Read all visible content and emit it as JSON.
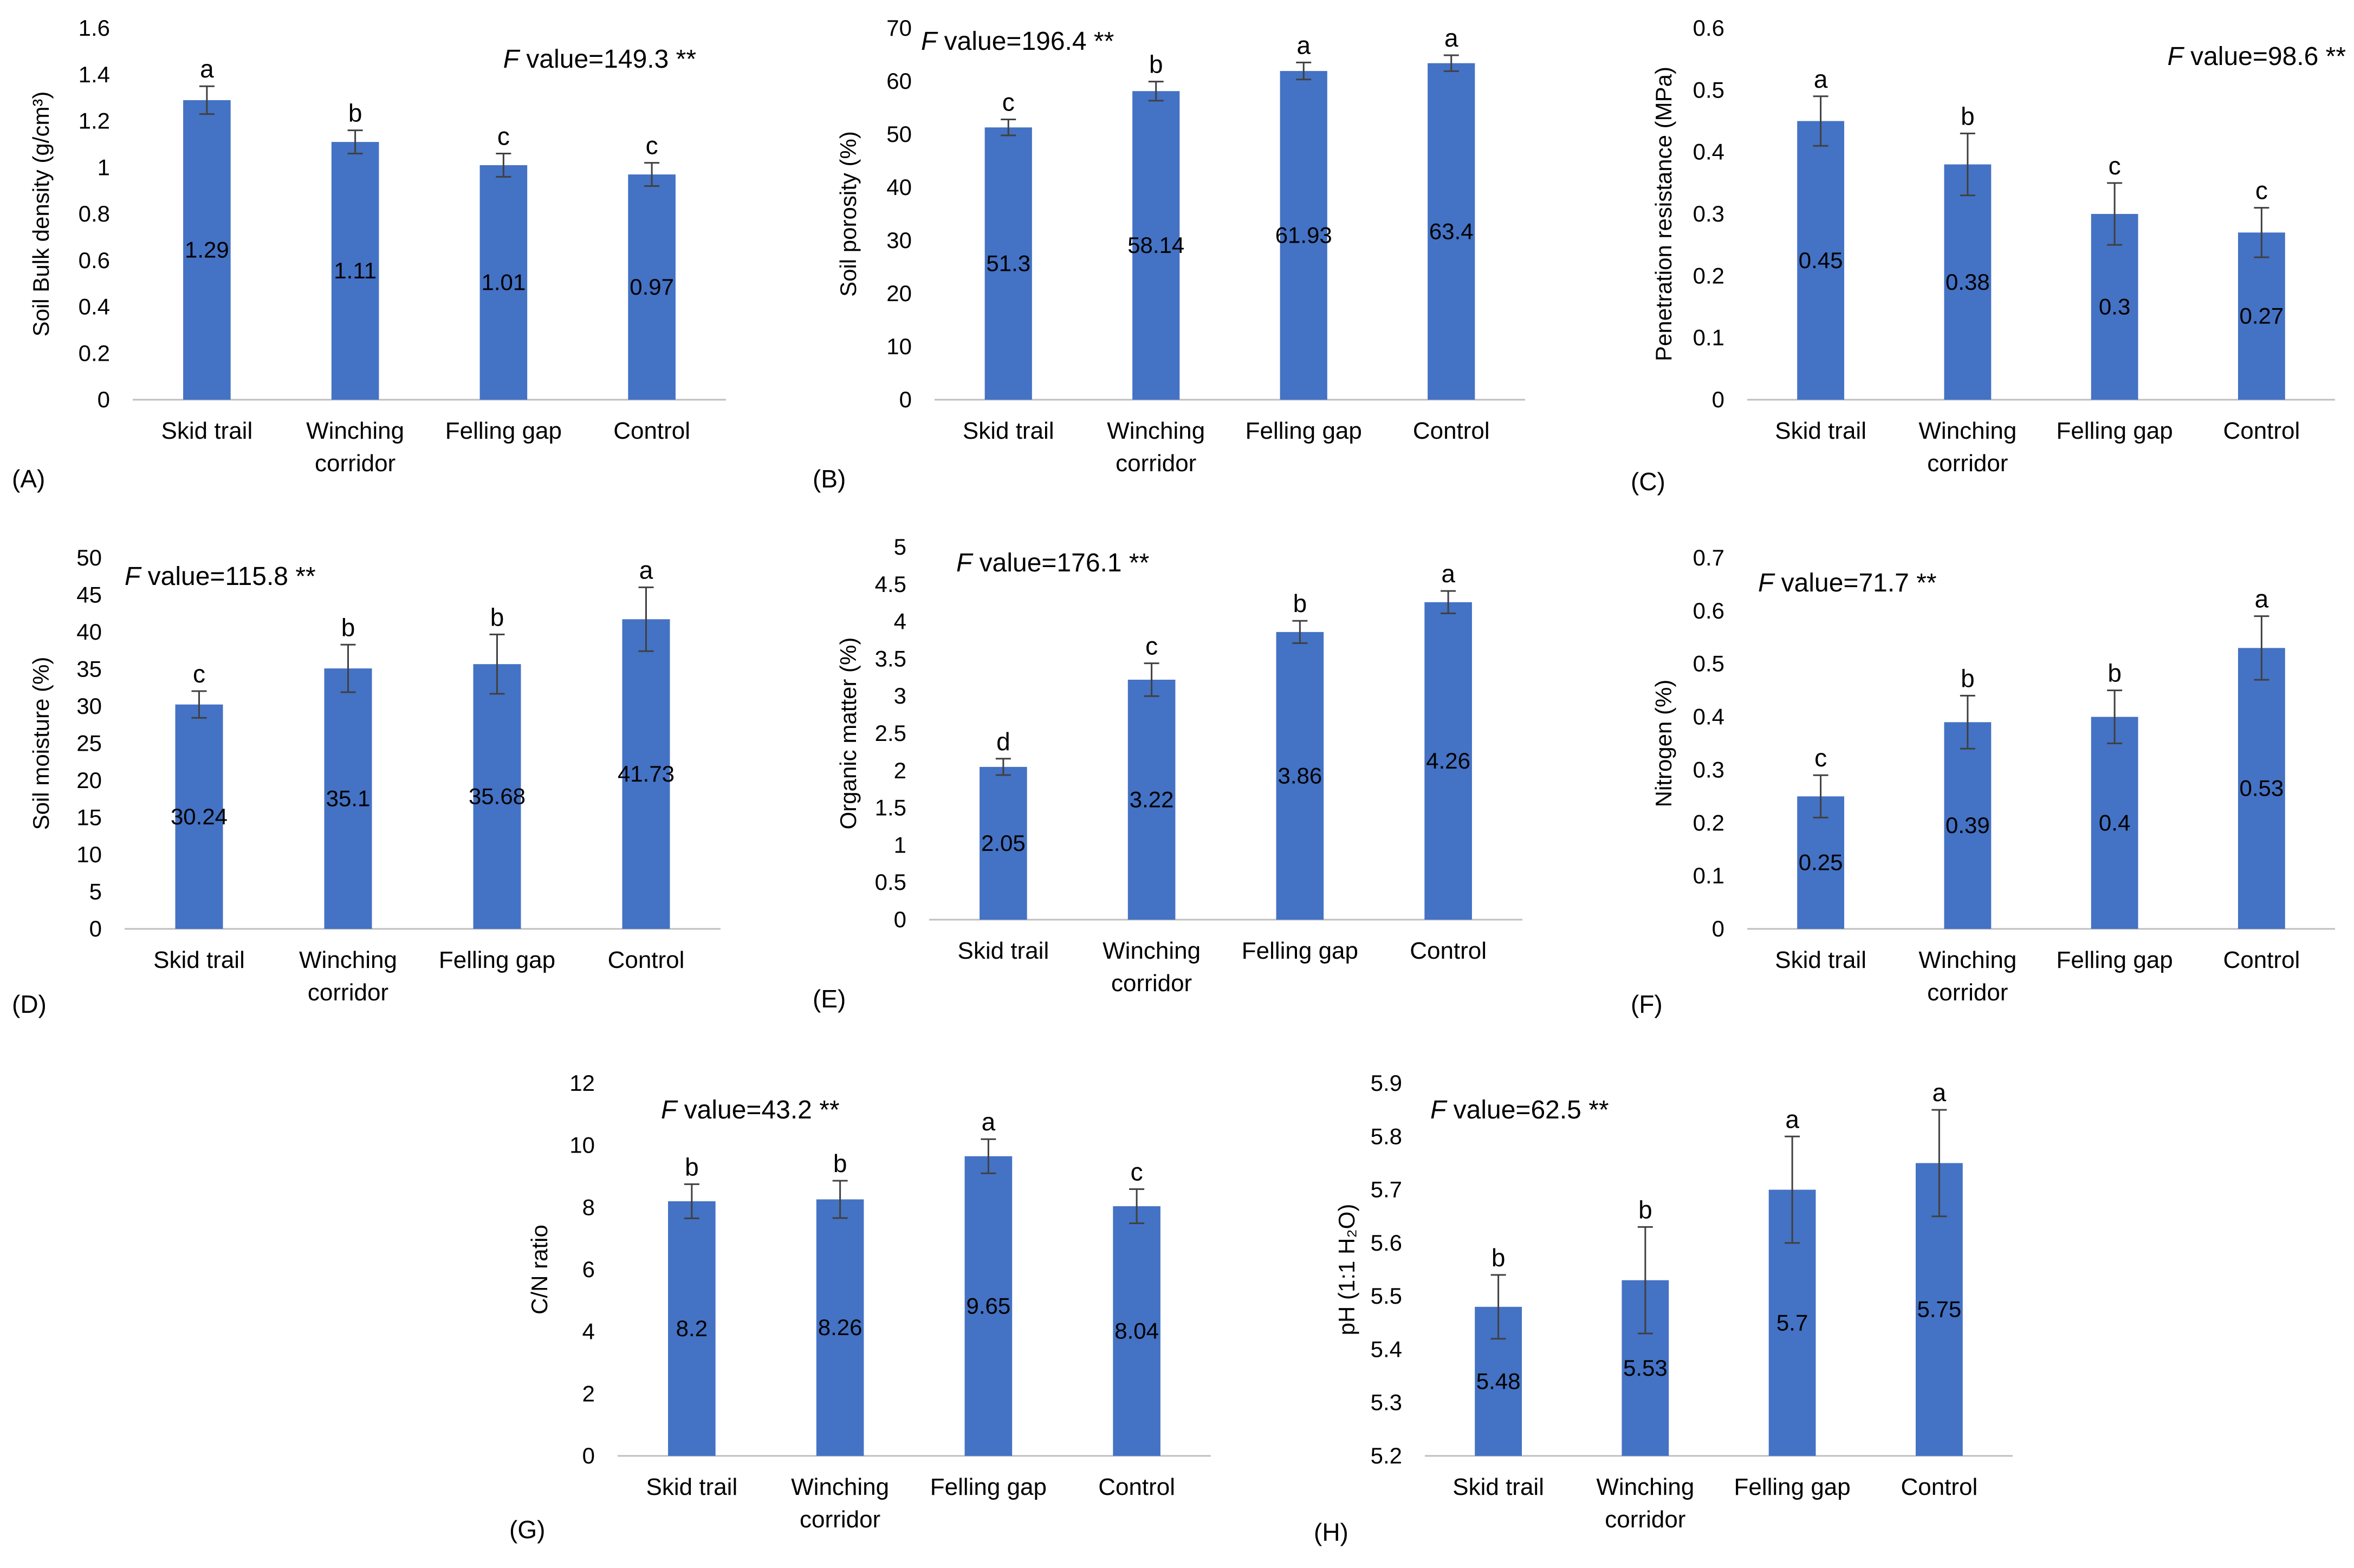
{
  "figure_colors": {
    "bar": "#4472C4",
    "text": "#000000",
    "axis": "#bfbfbf",
    "error": "#404040"
  },
  "chart_data": [
    {
      "panel": "(A)",
      "type": "bar",
      "title": "",
      "categories": [
        [
          "Skid trail"
        ],
        [
          "Winching",
          "corridor"
        ],
        [
          "Felling gap"
        ],
        [
          "Control"
        ]
      ],
      "values": [
        1.29,
        1.11,
        1.01,
        0.97
      ],
      "value_labels": [
        "1.29",
        "1.11",
        "1.01",
        "0.97"
      ],
      "errors": [
        0.06,
        0.05,
        0.05,
        0.05
      ],
      "letters": [
        "a",
        "b",
        "c",
        "c"
      ],
      "ylabel": "Soil Bulk density (g/cm³)",
      "ylim": [
        0,
        1.6
      ],
      "yticks": [
        "0",
        "0.2",
        "0.4",
        "0.6",
        "0.8",
        "1",
        "1.2",
        "1.4",
        "1.6"
      ],
      "f_label": "F",
      "f_text": " value=149.3 **",
      "f_position": "top-right",
      "grid": false,
      "legend": "none"
    },
    {
      "panel": "(B)",
      "type": "bar",
      "title": "",
      "categories": [
        [
          "Skid trail"
        ],
        [
          "Winching",
          "corridor"
        ],
        [
          "Felling gap"
        ],
        [
          "Control"
        ]
      ],
      "values": [
        51.3,
        58.14,
        61.93,
        63.4
      ],
      "value_labels": [
        "51.3",
        "58.14",
        "61.93",
        "63.4"
      ],
      "errors": [
        1.5,
        1.8,
        1.6,
        1.5
      ],
      "letters": [
        "c",
        "b",
        "a",
        "a"
      ],
      "ylabel": "Soil porosity (%)",
      "ylim": [
        0,
        70
      ],
      "yticks": [
        "0",
        "10",
        "20",
        "30",
        "40",
        "50",
        "60",
        "70"
      ],
      "f_label": "F",
      "f_text": " value=196.4 **",
      "f_position": "top-left",
      "grid": false,
      "legend": "none"
    },
    {
      "panel": "(C)",
      "type": "bar",
      "title": "",
      "categories": [
        [
          "Skid trail"
        ],
        [
          "Winching",
          "corridor"
        ],
        [
          "Felling gap"
        ],
        [
          "Control"
        ]
      ],
      "values": [
        0.45,
        0.38,
        0.3,
        0.27
      ],
      "value_labels": [
        "0.45",
        "0.38",
        "0.3",
        "0.27"
      ],
      "errors": [
        0.04,
        0.05,
        0.05,
        0.04
      ],
      "letters": [
        "a",
        "b",
        "c",
        "c"
      ],
      "ylabel": "Penetration resistance (MPa)",
      "ylim": [
        0,
        0.6
      ],
      "yticks": [
        "0",
        "0.1",
        "0.2",
        "0.3",
        "0.4",
        "0.5",
        "0.6"
      ],
      "f_label": "F",
      "f_text": " value=98.6 **",
      "f_position": "top-right",
      "grid": false,
      "legend": "none"
    },
    {
      "panel": "(D)",
      "type": "bar",
      "title": "",
      "categories": [
        [
          "Skid trail"
        ],
        [
          "Winching",
          "corridor"
        ],
        [
          "Felling gap"
        ],
        [
          "Control"
        ]
      ],
      "values": [
        30.24,
        35.1,
        35.68,
        41.73
      ],
      "value_labels": [
        "30.24",
        "35.1",
        "35.68",
        "41.73"
      ],
      "errors": [
        1.8,
        3.2,
        4.0,
        4.3
      ],
      "letters": [
        "c",
        "b",
        "b",
        "a"
      ],
      "ylabel": "Soil moisture (%)",
      "ylim": [
        0,
        50
      ],
      "yticks": [
        "0",
        "5",
        "10",
        "15",
        "20",
        "25",
        "30",
        "35",
        "40",
        "45",
        "50"
      ],
      "f_label": "F",
      "f_text": " value=115.8 **",
      "f_position": "top-left",
      "grid": false,
      "legend": "none"
    },
    {
      "panel": "(E)",
      "type": "bar",
      "title": "",
      "categories": [
        [
          "Skid trail"
        ],
        [
          "Winching",
          "corridor"
        ],
        [
          "Felling gap"
        ],
        [
          "Control"
        ]
      ],
      "values": [
        2.05,
        3.22,
        3.86,
        4.26
      ],
      "value_labels": [
        "2.05",
        "3.22",
        "3.86",
        "4.26"
      ],
      "errors": [
        0.11,
        0.22,
        0.15,
        0.15
      ],
      "letters": [
        "d",
        "c",
        "b",
        "a"
      ],
      "ylabel": "Organic matter (%)",
      "ylim": [
        0,
        5
      ],
      "yticks": [
        "0",
        "0.5",
        "1",
        "1.5",
        "2",
        "2.5",
        "3",
        "3.5",
        "4",
        "4.5",
        "5"
      ],
      "f_label": "F",
      "f_text": " value=176.1 **",
      "f_position": "top-left",
      "grid": false,
      "legend": "none"
    },
    {
      "panel": "(F)",
      "type": "bar",
      "title": "",
      "categories": [
        [
          "Skid trail"
        ],
        [
          "Winching",
          "corridor"
        ],
        [
          "Felling gap"
        ],
        [
          "Control"
        ]
      ],
      "values": [
        0.25,
        0.39,
        0.4,
        0.53
      ],
      "value_labels": [
        "0.25",
        "0.39",
        "0.4",
        "0.53"
      ],
      "errors": [
        0.04,
        0.05,
        0.05,
        0.06
      ],
      "letters": [
        "c",
        "b",
        "b",
        "a"
      ],
      "ylabel": "Nitrogen (%)",
      "ylim": [
        0,
        0.7
      ],
      "yticks": [
        "0",
        "0.1",
        "0.2",
        "0.3",
        "0.4",
        "0.5",
        "0.6",
        "0.7"
      ],
      "f_label": "F",
      "f_text": " value=71.7 **",
      "f_position": "top-left",
      "grid": false,
      "legend": "none"
    },
    {
      "panel": "(G)",
      "type": "bar",
      "title": "",
      "categories": [
        [
          "Skid trail"
        ],
        [
          "Winching",
          "corridor"
        ],
        [
          "Felling gap"
        ],
        [
          "Control"
        ]
      ],
      "values": [
        8.2,
        8.26,
        9.65,
        8.04
      ],
      "value_labels": [
        "8.2",
        "8.26",
        "9.65",
        "8.04"
      ],
      "errors": [
        0.55,
        0.6,
        0.55,
        0.55
      ],
      "letters": [
        "b",
        "b",
        "a",
        "c"
      ],
      "ylabel": "C/N ratio",
      "ylim": [
        0,
        12
      ],
      "yticks": [
        "0",
        "2",
        "4",
        "6",
        "8",
        "10",
        "12"
      ],
      "f_label": "F",
      "f_text": " value=43.2 **",
      "f_position": "top-left",
      "grid": false,
      "legend": "none"
    },
    {
      "panel": "(H)",
      "type": "bar",
      "title": "",
      "categories": [
        [
          "Skid trail"
        ],
        [
          "Winching",
          "corridor"
        ],
        [
          "Felling gap"
        ],
        [
          "Control"
        ]
      ],
      "values": [
        5.48,
        5.53,
        5.7,
        5.75
      ],
      "value_labels": [
        "5.48",
        "5.53",
        "5.7",
        "5.75"
      ],
      "errors": [
        0.06,
        0.1,
        0.1,
        0.1
      ],
      "letters": [
        "b",
        "b",
        "a",
        "a"
      ],
      "ylabel": "pH (1:1 H₂O)",
      "ylim": [
        5.2,
        5.9
      ],
      "yticks": [
        "5.2",
        "5.3",
        "5.4",
        "5.5",
        "5.6",
        "5.7",
        "5.8",
        "5.9"
      ],
      "f_label": "F",
      "f_text": " value=62.5 **",
      "f_position": "top-left",
      "grid": false,
      "legend": "none"
    }
  ]
}
